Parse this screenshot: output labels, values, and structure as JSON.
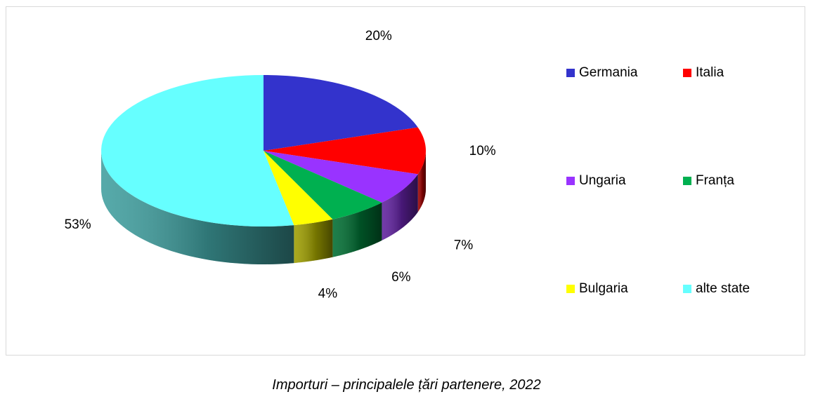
{
  "chart_data": {
    "type": "pie",
    "style": "3d",
    "start_angle_deg": 90,
    "direction": "clockwise",
    "slices": [
      {
        "name": "Germania",
        "value": 20,
        "label": "20%",
        "color": "#3333CC"
      },
      {
        "name": "Italia",
        "value": 10,
        "label": "10%",
        "color": "#FF0000"
      },
      {
        "name": "Ungaria",
        "value": 7,
        "label": "7%",
        "color": "#9933FF"
      },
      {
        "name": "Franța",
        "value": 6,
        "label": "6%",
        "color": "#00B050"
      },
      {
        "name": "Bulgaria",
        "value": 4,
        "label": "4%",
        "color": "#FFFF00"
      },
      {
        "name": "alte state",
        "value": 53,
        "label": "53%",
        "color": "#66FFFF"
      }
    ],
    "legend_placement": "right"
  },
  "caption": "Importuri – principalele țări partenere, 2022"
}
